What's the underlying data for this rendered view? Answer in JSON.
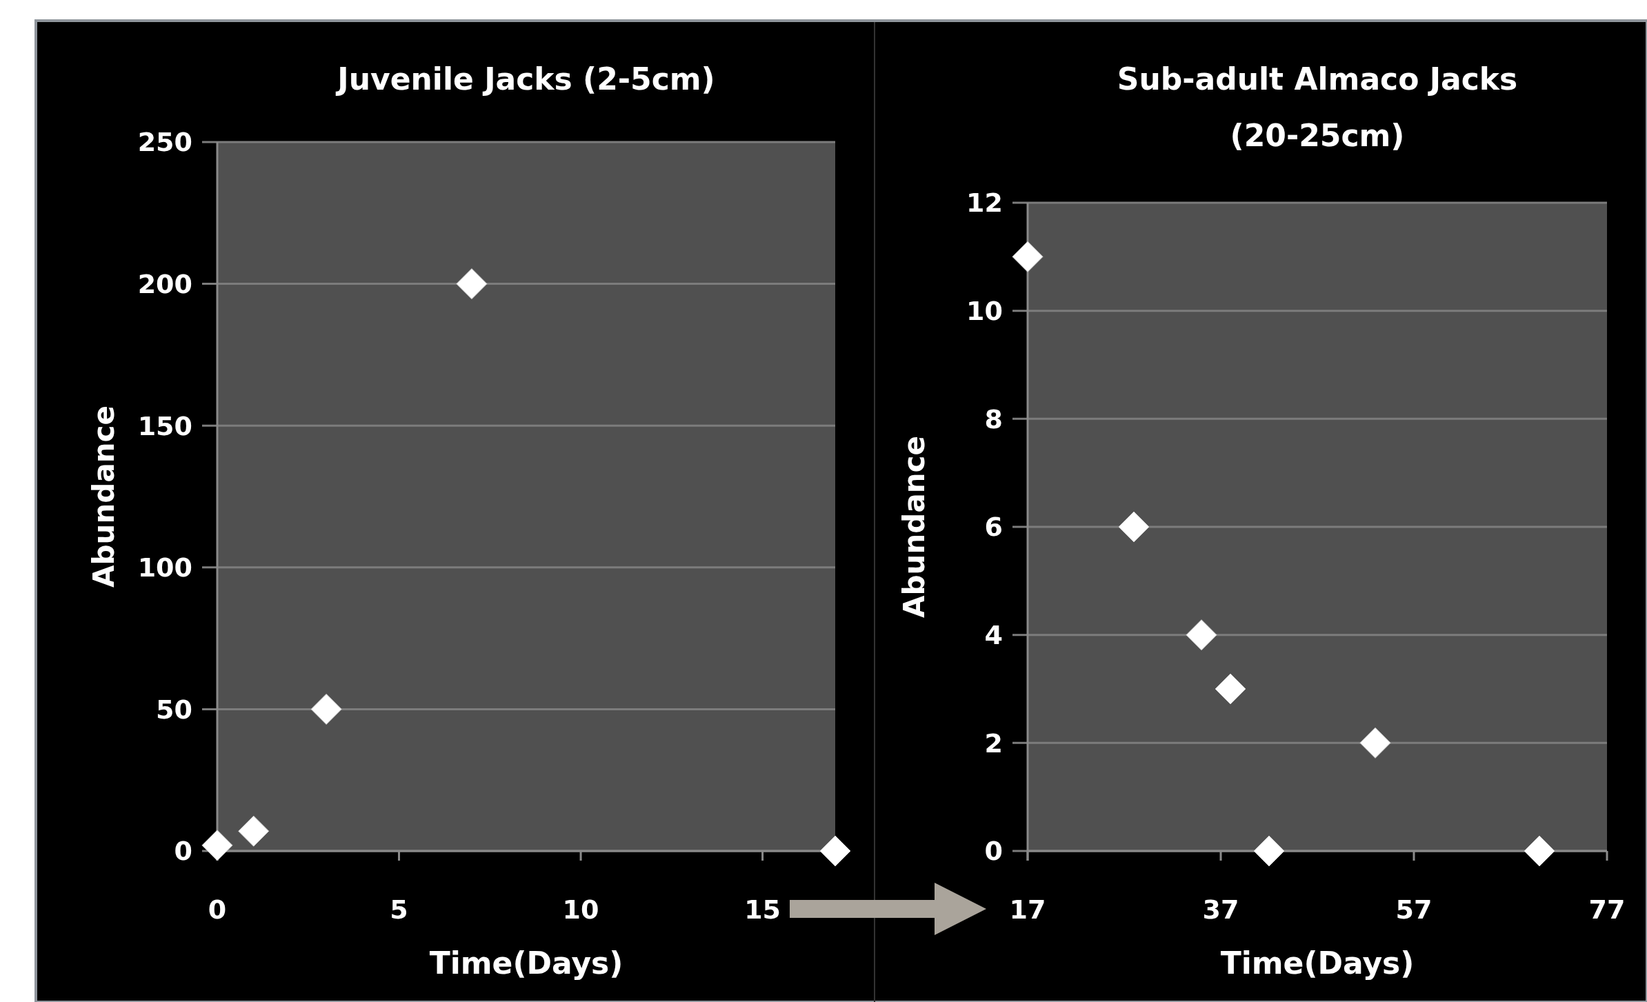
{
  "chart_data": [
    {
      "type": "scatter",
      "title": "Juvenile Jacks (2-5cm)",
      "xlabel": "Time(Days)",
      "ylabel": "Abundance",
      "x": [
        0,
        1,
        3,
        7,
        17
      ],
      "values": [
        2,
        7,
        50,
        200,
        0
      ],
      "color": "#ffffff",
      "xlim": [
        0,
        17
      ],
      "xticks": [
        0,
        5,
        10,
        15
      ],
      "ylim": [
        0,
        250
      ],
      "yticks": [
        0,
        50,
        100,
        150,
        200,
        250
      ],
      "grid": "y",
      "marker": "diamond"
    },
    {
      "type": "scatter",
      "title": "Sub-adult Almaco Jacks (20-25cm)",
      "xlabel": "Time(Days)",
      "ylabel": "Abundance",
      "x": [
        17,
        28,
        35,
        38,
        42,
        53,
        70
      ],
      "values": [
        11,
        6,
        4,
        3,
        0,
        2,
        0
      ],
      "color": "#ffffff",
      "xlim": [
        17,
        77
      ],
      "xticks": [
        17,
        37,
        57,
        77
      ],
      "ylim": [
        0,
        12
      ],
      "yticks": [
        0,
        2,
        4,
        6,
        8,
        10,
        12
      ],
      "grid": "y",
      "marker": "diamond"
    }
  ]
}
